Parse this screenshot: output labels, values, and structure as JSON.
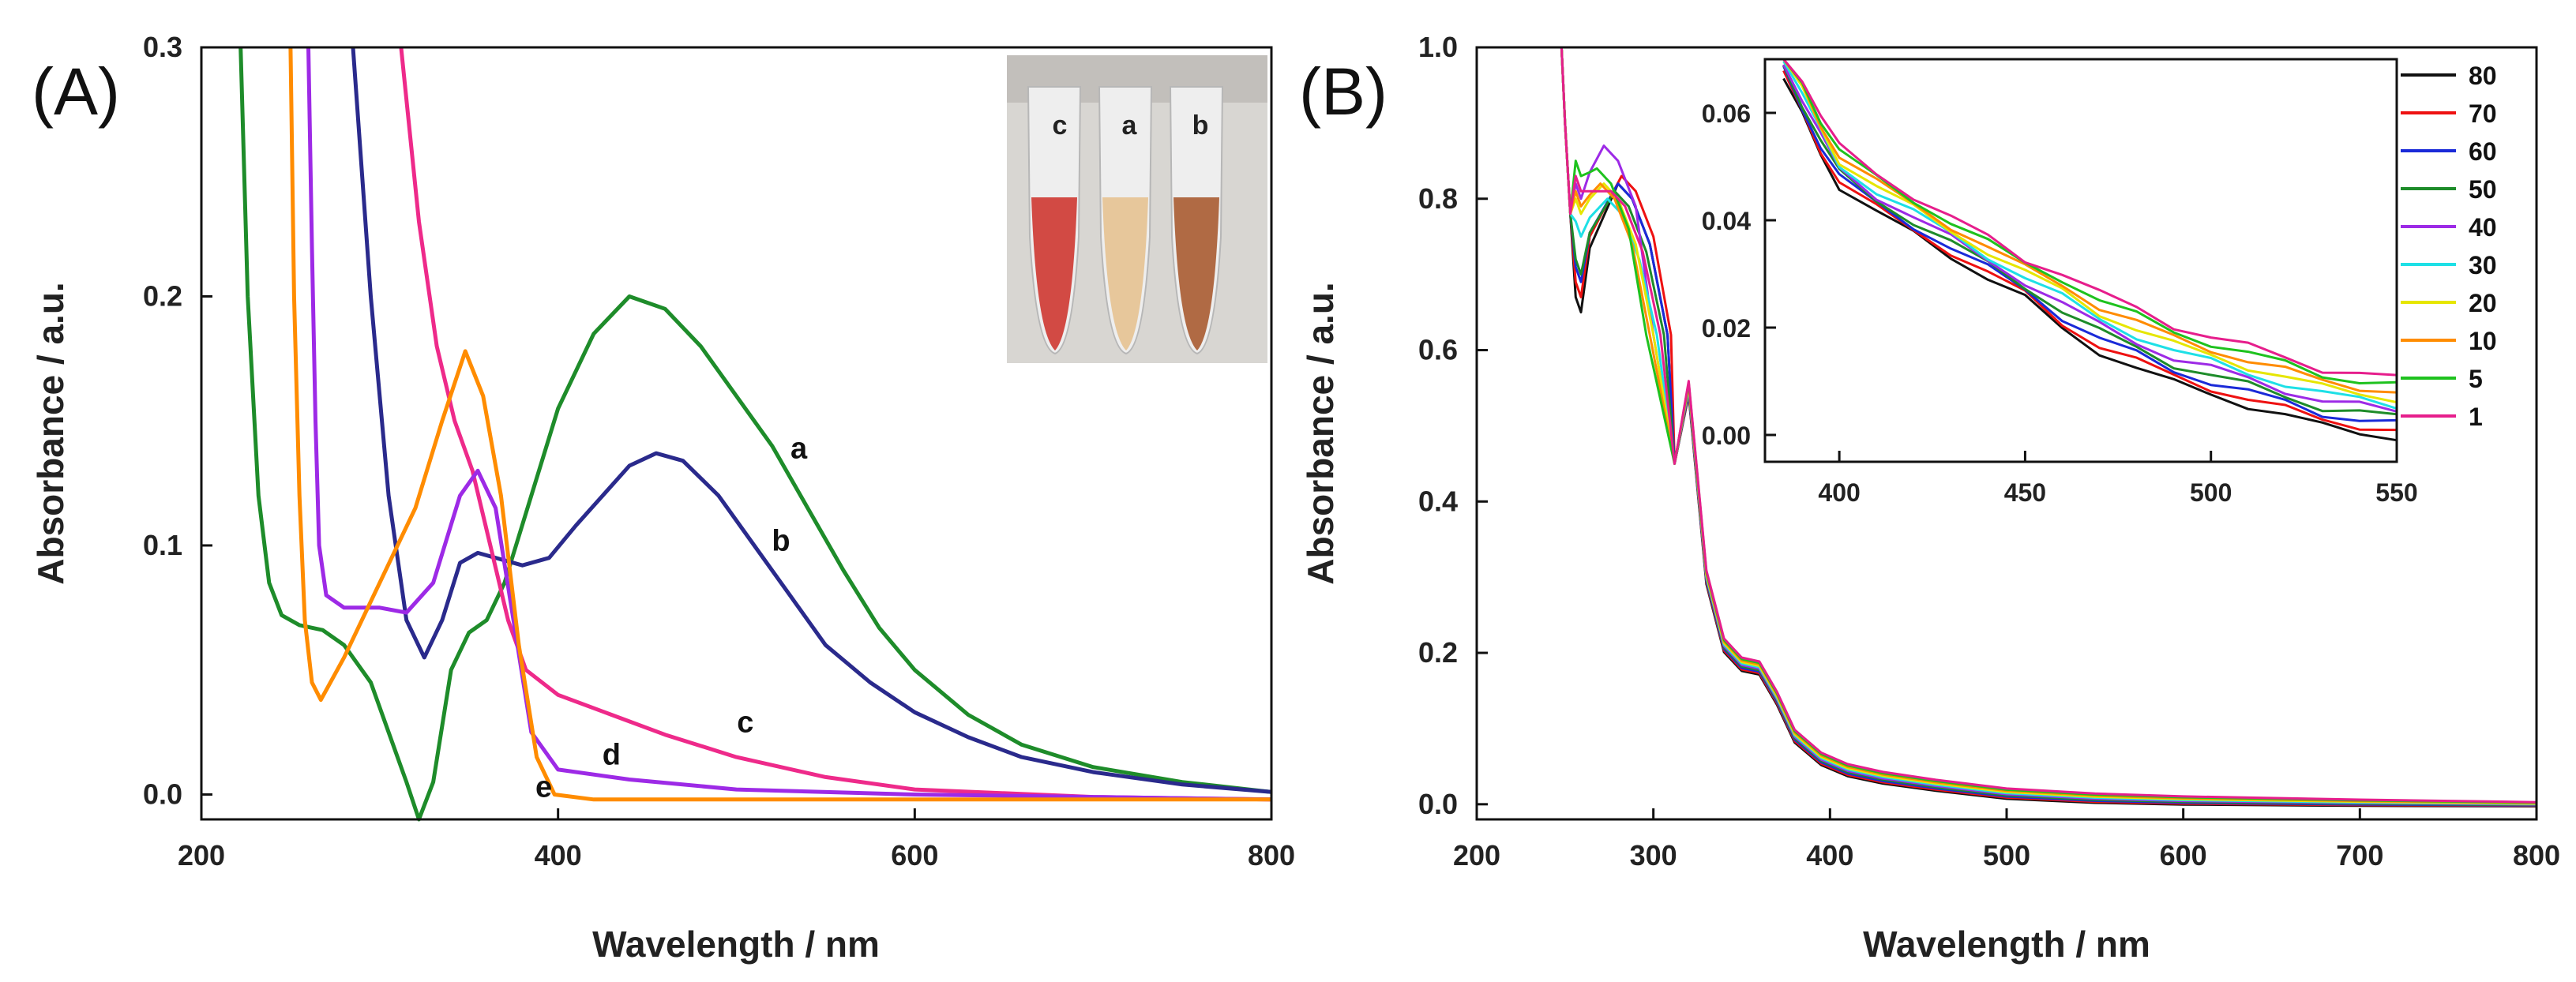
{
  "panels": {
    "a": {
      "label": "(A)"
    },
    "b": {
      "label": "(B)"
    }
  },
  "photo": {
    "tube_labels": [
      "c",
      "a",
      "b"
    ]
  },
  "chart_data": [
    {
      "type": "line",
      "panel": "A",
      "xlabel": "Wavelength / nm",
      "ylabel": "Absorbance / a.u.",
      "xlim": [
        200,
        800
      ],
      "ylim": [
        -0.01,
        0.3
      ],
      "xticks": [
        200,
        400,
        600,
        800
      ],
      "yticks": [
        0.0,
        0.1,
        0.2,
        0.3
      ],
      "ytick_labels": [
        "0.0",
        "0.1",
        "0.2",
        "0.3"
      ],
      "series": [
        {
          "name": "a",
          "color": "#1e8c2a",
          "points": [
            [
              222,
              0.3
            ],
            [
              226,
              0.2
            ],
            [
              232,
              0.12
            ],
            [
              238,
              0.085
            ],
            [
              245,
              0.072
            ],
            [
              255,
              0.068
            ],
            [
              268,
              0.066
            ],
            [
              280,
              0.06
            ],
            [
              295,
              0.045
            ],
            [
              305,
              0.025
            ],
            [
              315,
              0.005
            ],
            [
              322,
              -0.01
            ],
            [
              330,
              0.005
            ],
            [
              340,
              0.05
            ],
            [
              350,
              0.065
            ],
            [
              360,
              0.07
            ],
            [
              370,
              0.085
            ],
            [
              385,
              0.12
            ],
            [
              400,
              0.155
            ],
            [
              420,
              0.185
            ],
            [
              440,
              0.2
            ],
            [
              460,
              0.195
            ],
            [
              480,
              0.18
            ],
            [
              500,
              0.16
            ],
            [
              520,
              0.14
            ],
            [
              540,
              0.115
            ],
            [
              560,
              0.09
            ],
            [
              580,
              0.067
            ],
            [
              600,
              0.05
            ],
            [
              630,
              0.032
            ],
            [
              660,
              0.02
            ],
            [
              700,
              0.011
            ],
            [
              750,
              0.005
            ],
            [
              800,
              0.001
            ]
          ]
        },
        {
          "name": "b",
          "color": "#2a2a8c",
          "points": [
            [
              285,
              0.3
            ],
            [
              295,
              0.2
            ],
            [
              305,
              0.12
            ],
            [
              315,
              0.07
            ],
            [
              325,
              0.055
            ],
            [
              335,
              0.07
            ],
            [
              345,
              0.093
            ],
            [
              355,
              0.097
            ],
            [
              365,
              0.095
            ],
            [
              380,
              0.092
            ],
            [
              395,
              0.095
            ],
            [
              410,
              0.108
            ],
            [
              425,
              0.12
            ],
            [
              440,
              0.132
            ],
            [
              455,
              0.137
            ],
            [
              470,
              0.134
            ],
            [
              490,
              0.12
            ],
            [
              510,
              0.1
            ],
            [
              530,
              0.08
            ],
            [
              550,
              0.06
            ],
            [
              575,
              0.045
            ],
            [
              600,
              0.033
            ],
            [
              630,
              0.023
            ],
            [
              660,
              0.015
            ],
            [
              700,
              0.009
            ],
            [
              750,
              0.004
            ],
            [
              800,
              0.001
            ]
          ]
        },
        {
          "name": "c",
          "color": "#ee2a8a",
          "points": [
            [
              312,
              0.3
            ],
            [
              322,
              0.23
            ],
            [
              332,
              0.18
            ],
            [
              342,
              0.15
            ],
            [
              352,
              0.13
            ],
            [
              362,
              0.1
            ],
            [
              372,
              0.07
            ],
            [
              382,
              0.05
            ],
            [
              400,
              0.04
            ],
            [
              430,
              0.032
            ],
            [
              460,
              0.024
            ],
            [
              500,
              0.015
            ],
            [
              550,
              0.007
            ],
            [
              600,
              0.002
            ],
            [
              700,
              -0.001
            ],
            [
              800,
              -0.002
            ]
          ]
        },
        {
          "name": "d",
          "color": "#9d2ae6",
          "points": [
            [
              260,
              0.3
            ],
            [
              262,
              0.22
            ],
            [
              264,
              0.15
            ],
            [
              266,
              0.1
            ],
            [
              270,
              0.08
            ],
            [
              280,
              0.075
            ],
            [
              300,
              0.075
            ],
            [
              315,
              0.073
            ],
            [
              330,
              0.085
            ],
            [
              345,
              0.12
            ],
            [
              355,
              0.13
            ],
            [
              365,
              0.115
            ],
            [
              375,
              0.07
            ],
            [
              385,
              0.025
            ],
            [
              400,
              0.01
            ],
            [
              440,
              0.006
            ],
            [
              500,
              0.002
            ],
            [
              600,
              0
            ],
            [
              700,
              -0.001
            ],
            [
              800,
              -0.002
            ]
          ]
        },
        {
          "name": "e",
          "color": "#ff8c00",
          "points": [
            [
              250,
              0.3
            ],
            [
              252,
              0.2
            ],
            [
              255,
              0.12
            ],
            [
              258,
              0.07
            ],
            [
              262,
              0.045
            ],
            [
              267,
              0.038
            ],
            [
              280,
              0.055
            ],
            [
              300,
              0.085
            ],
            [
              320,
              0.115
            ],
            [
              335,
              0.15
            ],
            [
              348,
              0.178
            ],
            [
              358,
              0.16
            ],
            [
              368,
              0.12
            ],
            [
              378,
              0.06
            ],
            [
              388,
              0.015
            ],
            [
              398,
              0
            ],
            [
              420,
              -0.002
            ],
            [
              500,
              -0.002
            ],
            [
              600,
              -0.002
            ],
            [
              700,
              -0.002
            ],
            [
              800,
              -0.002
            ]
          ]
        }
      ],
      "labels": [
        {
          "text": "a",
          "x": 535,
          "y": 0.135
        },
        {
          "text": "b",
          "x": 525,
          "y": 0.098
        },
        {
          "text": "c",
          "x": 505,
          "y": 0.025
        },
        {
          "text": "d",
          "x": 430,
          "y": 0.012
        },
        {
          "text": "e",
          "x": 392,
          "y": -0.001
        }
      ]
    },
    {
      "type": "line",
      "panel": "B",
      "xlabel": "Wavelength / nm",
      "ylabel": "Absorbance / a.u.",
      "xlim": [
        200,
        800
      ],
      "ylim": [
        -0.02,
        1.0
      ],
      "xticks": [
        200,
        300,
        400,
        500,
        600,
        700,
        800
      ],
      "yticks": [
        0.0,
        0.2,
        0.4,
        0.6,
        0.8,
        1.0
      ],
      "ytick_labels": [
        "0.0",
        "0.2",
        "0.4",
        "0.6",
        "0.8",
        "1.0"
      ],
      "legend": {
        "position": "top-right",
        "entries": [
          "80",
          "70",
          "60",
          "50",
          "40",
          "30",
          "20",
          "10",
          "5",
          "1"
        ]
      },
      "series": [
        {
          "name": "80",
          "color": "#111111",
          "valley": 0.65,
          "peak": 0.82,
          "peak_x": 280
        },
        {
          "name": "70",
          "color": "#ee1111",
          "valley": 0.67,
          "peak": 0.83,
          "peak_x": 282
        },
        {
          "name": "60",
          "color": "#1a2ad8",
          "valley": 0.69,
          "peak": 0.82,
          "peak_x": 280
        },
        {
          "name": "50",
          "color": "#1e8c2a",
          "valley": 0.7,
          "peak": 0.81,
          "peak_x": 278
        },
        {
          "name": "40",
          "color": "#9d2ae6",
          "valley": 0.8,
          "peak": 0.87,
          "peak_x": 272
        },
        {
          "name": "30",
          "color": "#1ee0e6",
          "valley": 0.75,
          "peak": 0.8,
          "peak_x": 274
        },
        {
          "name": "20",
          "color": "#e6e600",
          "valley": 0.78,
          "peak": 0.82,
          "peak_x": 272
        },
        {
          "name": "10",
          "color": "#ff8c00",
          "valley": 0.79,
          "peak": 0.82,
          "peak_x": 270
        },
        {
          "name": "5",
          "color": "#1ec21e",
          "valley": 0.83,
          "peak": 0.84,
          "peak_x": 268
        },
        {
          "name": "1",
          "color": "#e61e8c",
          "valley": 0.81,
          "peak": 0.81,
          "peak_x": 276
        }
      ],
      "inset": {
        "xlim": [
          380,
          550
        ],
        "ylim": [
          -0.005,
          0.07
        ],
        "xticks": [
          400,
          450,
          500,
          550
        ],
        "yticks": [
          0.0,
          0.02,
          0.04,
          0.06
        ],
        "ytick_labels": [
          "0.00",
          "0.02",
          "0.04",
          "0.06"
        ],
        "base_points": [
          [
            385,
            0.07
          ],
          [
            390,
            0.063
          ],
          [
            395,
            0.056
          ],
          [
            400,
            0.05
          ],
          [
            410,
            0.045
          ],
          [
            420,
            0.041
          ],
          [
            430,
            0.037
          ],
          [
            440,
            0.033
          ],
          [
            450,
            0.029
          ],
          [
            460,
            0.025
          ],
          [
            470,
            0.021
          ],
          [
            480,
            0.018
          ],
          [
            490,
            0.015
          ],
          [
            500,
            0.013
          ],
          [
            510,
            0.011
          ],
          [
            520,
            0.009
          ],
          [
            530,
            0.007
          ],
          [
            540,
            0.006
          ],
          [
            550,
            0.005
          ]
        ]
      }
    }
  ]
}
